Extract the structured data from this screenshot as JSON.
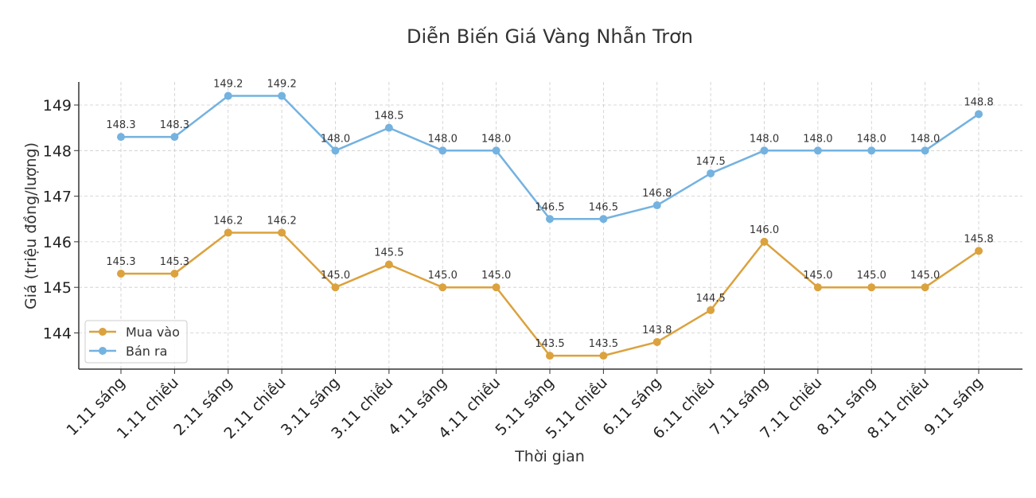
{
  "chart_data": {
    "type": "line",
    "title": "Diễn Biến Giá Vàng Nhẫn Trơn",
    "xlabel": "Thời gian",
    "ylabel": "Giá (triệu đồng/lượng)",
    "categories": [
      "1.11 sáng",
      "1.11 chiều",
      "2.11 sáng",
      "2.11 chiều",
      "3.11 sáng",
      "3.11 chiều",
      "4.11 sáng",
      "4.11 chiều",
      "5.11 sáng",
      "5.11 chiều",
      "6.11 sáng",
      "6.11 chiều",
      "7.11 sáng",
      "7.11 chiều",
      "8.11 sáng",
      "8.11 chiều",
      "9.11 sáng"
    ],
    "series": [
      {
        "name": "Mua vào",
        "color": "#dba23e",
        "values": [
          145.3,
          145.3,
          146.2,
          146.2,
          145.0,
          145.5,
          145.0,
          145.0,
          143.5,
          143.5,
          143.8,
          144.5,
          146.0,
          145.0,
          145.0,
          145.0,
          145.8
        ]
      },
      {
        "name": "Bán ra",
        "color": "#74b2e0",
        "values": [
          148.3,
          148.3,
          149.2,
          149.2,
          148.0,
          148.5,
          148.0,
          148.0,
          146.5,
          146.5,
          146.8,
          147.5,
          148.0,
          148.0,
          148.0,
          148.0,
          148.8
        ]
      }
    ],
    "yticks": [
      144,
      145,
      146,
      147,
      148,
      149
    ],
    "ylim": [
      143.25,
      149.5
    ],
    "grid": true,
    "legend_position": "lower left",
    "data_labels": true
  }
}
